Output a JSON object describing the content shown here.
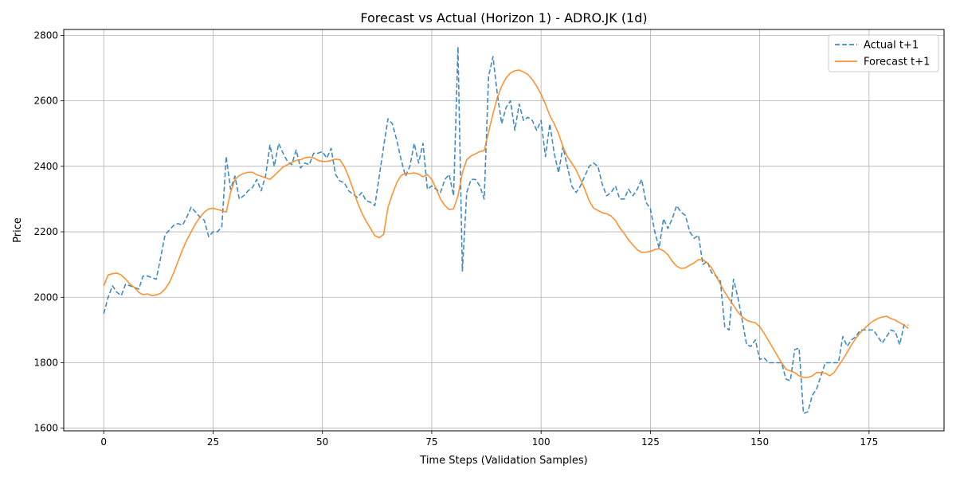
{
  "chart_data": {
    "type": "line",
    "title": "Forecast vs Actual (Horizon 1) - ADRO.JK (1d)",
    "xlabel": "Time Steps (Validation Samples)",
    "ylabel": "Price",
    "xlim": [
      -9.15,
      192.15
    ],
    "ylim": [
      1592,
      2818
    ],
    "xticks": [
      0,
      25,
      50,
      75,
      100,
      125,
      150,
      175
    ],
    "yticks": [
      1600,
      1800,
      2000,
      2200,
      2400,
      2600,
      2800
    ],
    "grid": true,
    "legend_position": "top-right",
    "series": [
      {
        "name": "Actual t+1",
        "color": "#1f77b4",
        "style": "dashed",
        "values": [
          1950,
          2000,
          2035,
          2015,
          2005,
          2040,
          2035,
          2030,
          2025,
          2065,
          2065,
          2060,
          2055,
          2120,
          2190,
          2205,
          2220,
          2225,
          2220,
          2245,
          2275,
          2260,
          2245,
          2235,
          2185,
          2200,
          2200,
          2215,
          2430,
          2330,
          2370,
          2300,
          2310,
          2325,
          2335,
          2360,
          2325,
          2370,
          2465,
          2400,
          2470,
          2440,
          2415,
          2405,
          2450,
          2395,
          2410,
          2405,
          2440,
          2440,
          2445,
          2425,
          2455,
          2375,
          2355,
          2350,
          2325,
          2315,
          2305,
          2320,
          2295,
          2290,
          2280,
          2370,
          2460,
          2545,
          2530,
          2480,
          2420,
          2370,
          2400,
          2470,
          2410,
          2470,
          2330,
          2340,
          2330,
          2320,
          2360,
          2375,
          2310,
          2765,
          2080,
          2320,
          2360,
          2360,
          2340,
          2300,
          2675,
          2735,
          2620,
          2530,
          2580,
          2600,
          2510,
          2590,
          2540,
          2550,
          2540,
          2510,
          2540,
          2430,
          2530,
          2440,
          2380,
          2460,
          2400,
          2340,
          2320,
          2340,
          2370,
          2400,
          2410,
          2400,
          2345,
          2310,
          2320,
          2340,
          2300,
          2300,
          2330,
          2310,
          2330,
          2360,
          2290,
          2270,
          2200,
          2150,
          2240,
          2210,
          2240,
          2280,
          2260,
          2250,
          2200,
          2180,
          2190,
          2100,
          2110,
          2075,
          2065,
          2050,
          1910,
          1900,
          2055,
          2000,
          1930,
          1855,
          1850,
          1870,
          1810,
          1815,
          1800,
          1800,
          1800,
          1800,
          1750,
          1745,
          1840,
          1845,
          1645,
          1650,
          1700,
          1720,
          1760,
          1800,
          1800,
          1800,
          1800,
          1880,
          1850,
          1870,
          1880,
          1900,
          1900,
          1900,
          1900,
          1880,
          1860,
          1880,
          1900,
          1895,
          1855,
          1915,
          1915
        ]
      },
      {
        "name": "Forecast t+1",
        "color": "#ff7f0e",
        "style": "solid",
        "values": [
          2035,
          2068,
          2072,
          2074,
          2068,
          2055,
          2040,
          2030,
          2015,
          2008,
          2010,
          2005,
          2007,
          2012,
          2025,
          2045,
          2075,
          2110,
          2145,
          2175,
          2200,
          2225,
          2245,
          2260,
          2270,
          2272,
          2268,
          2265,
          2260,
          2320,
          2360,
          2372,
          2378,
          2382,
          2382,
          2374,
          2370,
          2365,
          2360,
          2372,
          2385,
          2398,
          2405,
          2412,
          2418,
          2420,
          2426,
          2428,
          2426,
          2418,
          2415,
          2415,
          2418,
          2422,
          2420,
          2400,
          2368,
          2330,
          2290,
          2258,
          2232,
          2210,
          2188,
          2182,
          2192,
          2275,
          2315,
          2350,
          2372,
          2378,
          2378,
          2380,
          2376,
          2368,
          2375,
          2360,
          2332,
          2300,
          2280,
          2268,
          2270,
          2310,
          2380,
          2420,
          2432,
          2438,
          2445,
          2448,
          2505,
          2560,
          2610,
          2645,
          2670,
          2685,
          2692,
          2694,
          2688,
          2680,
          2665,
          2645,
          2620,
          2590,
          2555,
          2530,
          2500,
          2460,
          2430,
          2410,
          2390,
          2360,
          2330,
          2295,
          2272,
          2265,
          2258,
          2255,
          2248,
          2235,
          2212,
          2195,
          2175,
          2160,
          2145,
          2137,
          2138,
          2140,
          2146,
          2148,
          2142,
          2130,
          2110,
          2095,
          2088,
          2090,
          2098,
          2105,
          2115,
          2115,
          2105,
          2090,
          2065,
          2040,
          2015,
          1995,
          1975,
          1955,
          1940,
          1930,
          1925,
          1922,
          1910,
          1890,
          1868,
          1845,
          1822,
          1800,
          1780,
          1775,
          1770,
          1760,
          1755,
          1755,
          1760,
          1770,
          1770,
          1768,
          1760,
          1770,
          1790,
          1810,
          1832,
          1855,
          1875,
          1892,
          1905,
          1918,
          1928,
          1935,
          1940,
          1942,
          1935,
          1930,
          1922,
          1915,
          1905
        ]
      }
    ]
  }
}
